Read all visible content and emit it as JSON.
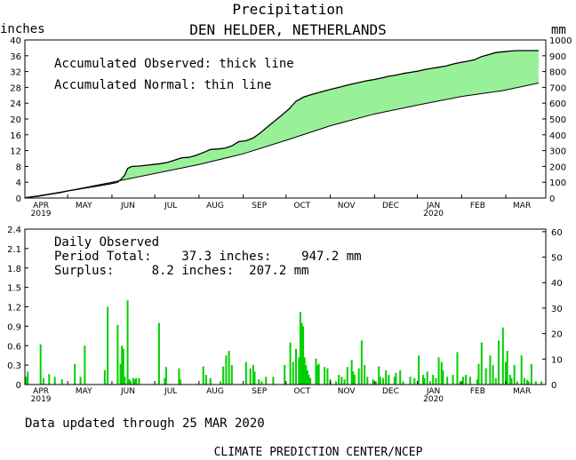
{
  "header": {
    "title": "Precipitation",
    "station": "DEN HELDER, NETHERLANDS",
    "left_unit": "inches",
    "right_unit": "mm"
  },
  "footer": {
    "updated": "Data updated through 25 MAR 2020",
    "credit": "CLIMATE PREDICTION CENTER/NCEP"
  },
  "chart_data": [
    {
      "type": "area",
      "annotations": [
        "Accumulated Observed: thick line",
        "Accumulated Normal: thin line"
      ],
      "x_tick_labels": [
        "APR",
        "MAY",
        "JUN",
        "JUL",
        "AUG",
        "SEP",
        "OCT",
        "NOV",
        "DEC",
        "JAN",
        "FEB",
        "MAR"
      ],
      "x_year_labels": [
        {
          "under": "APR",
          "text": "2019"
        },
        {
          "under": "JAN",
          "text": "2020"
        }
      ],
      "ylim_left": [
        0,
        40
      ],
      "yticks_left": [
        "0",
        "4",
        "8",
        "12",
        "16",
        "20",
        "24",
        "28",
        "32",
        "36",
        "40"
      ],
      "ylim_right": [
        0,
        1000
      ],
      "yticks_right": [
        "0",
        "100",
        "200",
        "300",
        "400",
        "500",
        "600",
        "700",
        "800",
        "900",
        "1000"
      ],
      "x_range_days": [
        0,
        365
      ],
      "colors": {
        "surplus": "#98f198",
        "deficit": "#c09090"
      },
      "series": [
        {
          "name": "Accumulated Observed",
          "x": [
            0,
            5,
            10,
            15,
            20,
            25,
            30,
            35,
            40,
            45,
            50,
            55,
            60,
            65,
            68,
            70,
            72,
            75,
            80,
            85,
            90,
            95,
            100,
            105,
            110,
            115,
            120,
            125,
            130,
            135,
            140,
            145,
            150,
            155,
            160,
            165,
            170,
            175,
            180,
            185,
            190,
            195,
            200,
            205,
            210,
            215,
            220,
            225,
            230,
            235,
            240,
            245,
            250,
            255,
            260,
            265,
            270,
            275,
            280,
            285,
            290,
            295,
            300,
            305,
            310,
            315,
            320,
            325,
            330,
            335,
            340,
            345,
            350,
            355,
            360
          ],
          "y": [
            0.1,
            0.3,
            0.5,
            0.8,
            1.1,
            1.4,
            1.8,
            2.1,
            2.4,
            2.7,
            3.0,
            3.3,
            3.6,
            4.0,
            5.0,
            5.8,
            7.5,
            8.0,
            8.1,
            8.3,
            8.5,
            8.7,
            9.0,
            9.6,
            10.2,
            10.3,
            10.8,
            11.5,
            12.3,
            12.4,
            12.6,
            13.2,
            14.3,
            14.5,
            15.2,
            16.5,
            18.0,
            19.5,
            21.0,
            22.5,
            24.5,
            25.5,
            26.1,
            26.6,
            27.1,
            27.6,
            28.0,
            28.5,
            28.9,
            29.3,
            29.7,
            30.0,
            30.4,
            30.8,
            31.1,
            31.5,
            31.8,
            32.1,
            32.5,
            32.8,
            33.1,
            33.4,
            33.9,
            34.3,
            34.6,
            35.0,
            35.8,
            36.3,
            36.8,
            37.0,
            37.2,
            37.3,
            37.3,
            37.3,
            37.3
          ]
        },
        {
          "name": "Accumulated Normal",
          "x": [
            0,
            30,
            61,
            91,
            122,
            153,
            183,
            214,
            244,
            275,
            306,
            335,
            360
          ],
          "y": [
            0.0,
            1.8,
            4.0,
            6.2,
            8.5,
            11.2,
            14.6,
            18.3,
            21.2,
            23.5,
            25.7,
            27.2,
            29.1
          ]
        }
      ]
    },
    {
      "type": "bar",
      "annotations": [
        "Daily Observed",
        "Period Total:    37.3 inches:    947.2 mm",
        "Surplus:     8.2 inches:  207.2 mm"
      ],
      "ylim_left": [
        0,
        2.4
      ],
      "yticks_left": [
        "0",
        "0.3",
        "0.6",
        "0.9",
        "1.2",
        "1.5",
        "1.8",
        "2.1",
        "2.4"
      ],
      "ylim_right": [
        0,
        61
      ],
      "yticks_right": [
        "0",
        "10",
        "20",
        "30",
        "40",
        "50",
        "60"
      ],
      "color": "#00d000",
      "bars": {
        "day": [
          1,
          2,
          11,
          13,
          17,
          21,
          26,
          35,
          39,
          42,
          56,
          58,
          65,
          67,
          68,
          69,
          70,
          72,
          73,
          74,
          76,
          77,
          78,
          80,
          94,
          98,
          99,
          108,
          109,
          125,
          127,
          130,
          137,
          139,
          141,
          143,
          145,
          155,
          158,
          160,
          161,
          164,
          166,
          169,
          174,
          182,
          186,
          188,
          190,
          192,
          193,
          194,
          195,
          196,
          197,
          198,
          199,
          200,
          204,
          205,
          206,
          210,
          212,
          214,
          218,
          220,
          222,
          224,
          226,
          229,
          230,
          231,
          234,
          236,
          238,
          240,
          244,
          246,
          248,
          249,
          251,
          253,
          255,
          259,
          260,
          263,
          265,
          270,
          273,
          276,
          279,
          280,
          282,
          284,
          286,
          288,
          290,
          292,
          293,
          296,
          300,
          303,
          305,
          307,
          309,
          312,
          317,
          318,
          320,
          323,
          326,
          328,
          330,
          332,
          335,
          337,
          338,
          340,
          341,
          343,
          345,
          348,
          350,
          352,
          353,
          355,
          358,
          362
        ],
        "value": [
          0.12,
          0.2,
          0.62,
          0.1,
          0.16,
          0.12,
          0.08,
          0.32,
          0.12,
          0.6,
          0.22,
          1.2,
          0.92,
          0.32,
          0.6,
          0.55,
          0.12,
          1.3,
          0.08,
          0.06,
          0.1,
          0.08,
          0.1,
          0.1,
          0.95,
          0.1,
          0.27,
          0.25,
          0.08,
          0.28,
          0.15,
          0.1,
          0.05,
          0.28,
          0.45,
          0.52,
          0.3,
          0.35,
          0.25,
          0.3,
          0.2,
          0.08,
          0.05,
          0.12,
          0.12,
          0.3,
          0.65,
          0.35,
          0.55,
          0.42,
          1.12,
          0.95,
          0.9,
          0.42,
          0.3,
          0.22,
          0.15,
          0.1,
          0.4,
          0.3,
          0.32,
          0.27,
          0.25,
          0.08,
          0.05,
          0.15,
          0.12,
          0.08,
          0.27,
          0.38,
          0.2,
          0.15,
          0.25,
          0.68,
          0.3,
          0.12,
          0.08,
          0.05,
          0.28,
          0.12,
          0.1,
          0.22,
          0.15,
          0.12,
          0.18,
          0.22,
          0.05,
          0.12,
          0.1,
          0.45,
          0.15,
          0.1,
          0.2,
          0.05,
          0.15,
          0.1,
          0.42,
          0.35,
          0.22,
          0.12,
          0.15,
          0.5,
          0.05,
          0.12,
          0.15,
          0.12,
          0.08,
          0.32,
          0.65,
          0.25,
          0.45,
          0.3,
          0.1,
          0.68,
          0.88,
          0.35,
          0.52,
          0.15,
          0.1,
          0.3,
          0.05,
          0.45,
          0.1,
          0.07,
          0.05,
          0.32,
          0.05,
          0.05
        ]
      }
    }
  ]
}
